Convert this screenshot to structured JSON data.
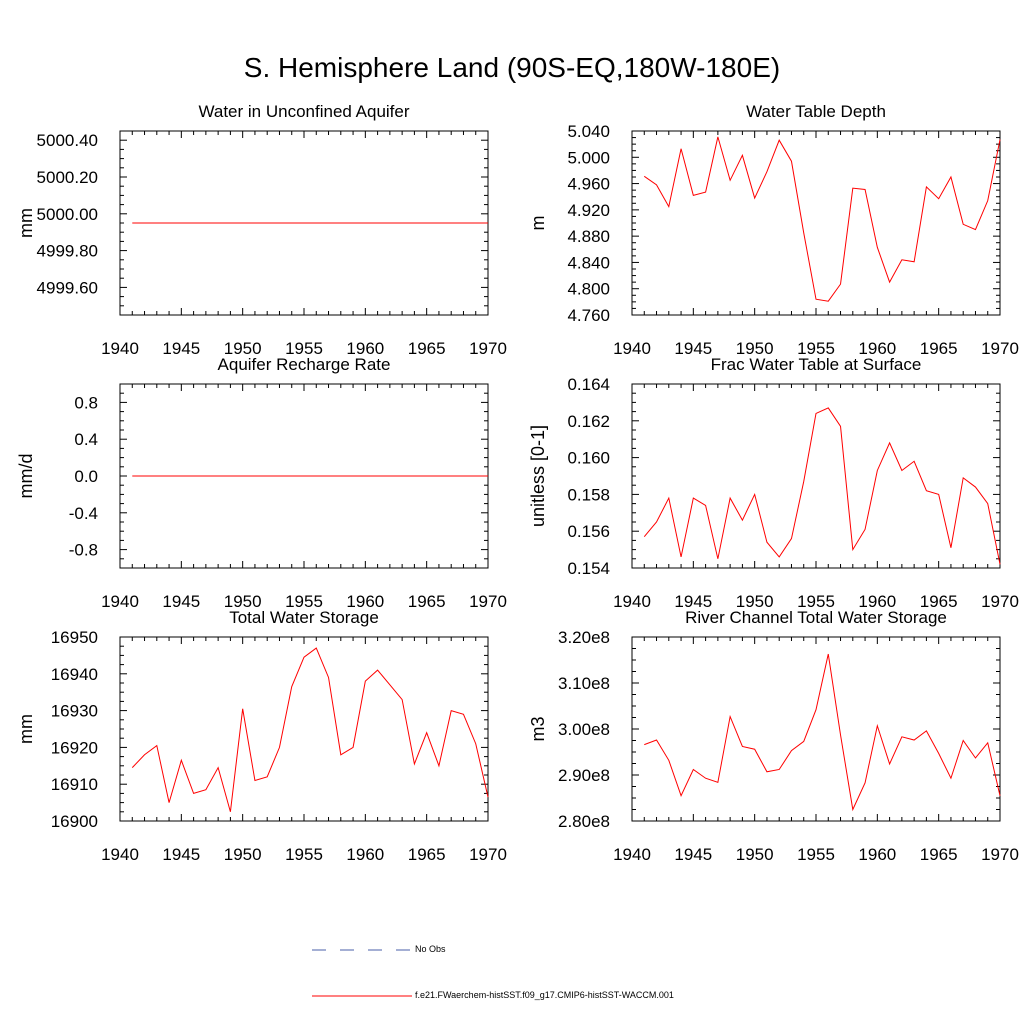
{
  "title": "S. Hemisphere Land (90S-EQ,180W-180E)",
  "legend": {
    "items": [
      {
        "label": "No Obs",
        "color": "#4a5fa8",
        "dash": "dashed"
      },
      {
        "label": "f.e21.FWaerchem-histSST.f09_g17.CMIP6-histSST-WACCM.001",
        "color": "#ff0000",
        "dash": "solid"
      }
    ]
  },
  "chart_data": [
    {
      "type": "line",
      "title": "Water in Unconfined Aquifer",
      "ylabel": "mm",
      "xlim": [
        1940,
        1970
      ],
      "ylim": [
        4999.45,
        5000.45
      ],
      "x_ticks": [
        "1940",
        "1945",
        "1950",
        "1955",
        "1960",
        "1965",
        "1970"
      ],
      "y_ticks": [
        "4999.60",
        "4999.80",
        "5000.00",
        "5000.20",
        "5000.40"
      ],
      "x": [
        1941,
        1942,
        1943,
        1944,
        1945,
        1946,
        1947,
        1948,
        1949,
        1950,
        1951,
        1952,
        1953,
        1954,
        1955,
        1956,
        1957,
        1958,
        1959,
        1960,
        1961,
        1962,
        1963,
        1964,
        1965,
        1966,
        1967,
        1968,
        1969,
        1970
      ],
      "series": [
        {
          "color": "#ff0000",
          "values": [
            4999.95,
            4999.95,
            4999.95,
            4999.95,
            4999.95,
            4999.95,
            4999.95,
            4999.95,
            4999.95,
            4999.95,
            4999.95,
            4999.95,
            4999.95,
            4999.95,
            4999.95,
            4999.95,
            4999.95,
            4999.95,
            4999.95,
            4999.95,
            4999.95,
            4999.95,
            4999.95,
            4999.95,
            4999.95,
            4999.95,
            4999.95,
            4999.95,
            4999.95,
            4999.95
          ]
        }
      ]
    },
    {
      "type": "line",
      "title": "Water Table Depth",
      "ylabel": "m",
      "xlim": [
        1940,
        1970
      ],
      "ylim": [
        4.76,
        5.04
      ],
      "x_ticks": [
        "1940",
        "1945",
        "1950",
        "1955",
        "1960",
        "1965",
        "1970"
      ],
      "y_ticks": [
        "4.760",
        "4.800",
        "4.840",
        "4.880",
        "4.920",
        "4.960",
        "5.000",
        "5.040"
      ],
      "x": [
        1941,
        1942,
        1943,
        1944,
        1945,
        1946,
        1947,
        1948,
        1949,
        1950,
        1951,
        1952,
        1953,
        1954,
        1955,
        1956,
        1957,
        1958,
        1959,
        1960,
        1961,
        1962,
        1963,
        1964,
        1965,
        1966,
        1967,
        1968,
        1969,
        1970
      ],
      "series": [
        {
          "color": "#ff0000",
          "values": [
            4.971,
            4.958,
            4.925,
            5.013,
            4.942,
            4.947,
            5.031,
            4.965,
            5.003,
            4.938,
            4.978,
            5.026,
            4.994,
            4.885,
            4.784,
            4.781,
            4.807,
            4.953,
            4.951,
            4.863,
            4.81,
            4.844,
            4.841,
            4.955,
            4.937,
            4.97,
            4.898,
            4.89,
            4.934,
            5.027
          ]
        }
      ]
    },
    {
      "type": "line",
      "title": "Aquifer Recharge Rate",
      "ylabel": "mm/d",
      "xlim": [
        1940,
        1970
      ],
      "ylim": [
        -1.0,
        1.0
      ],
      "x_ticks": [
        "1940",
        "1945",
        "1950",
        "1955",
        "1960",
        "1965",
        "1970"
      ],
      "y_ticks": [
        "-0.8",
        "-0.4",
        "0.0",
        "0.4",
        "0.8"
      ],
      "x": [
        1941,
        1942,
        1943,
        1944,
        1945,
        1946,
        1947,
        1948,
        1949,
        1950,
        1951,
        1952,
        1953,
        1954,
        1955,
        1956,
        1957,
        1958,
        1959,
        1960,
        1961,
        1962,
        1963,
        1964,
        1965,
        1966,
        1967,
        1968,
        1969,
        1970
      ],
      "series": [
        {
          "color": "#ff0000",
          "values": [
            0,
            0,
            0,
            0,
            0,
            0,
            0,
            0,
            0,
            0,
            0,
            0,
            0,
            0,
            0,
            0,
            0,
            0,
            0,
            0,
            0,
            0,
            0,
            0,
            0,
            0,
            0,
            0,
            0,
            0
          ]
        }
      ]
    },
    {
      "type": "line",
      "title": "Frac Water Table at Surface",
      "ylabel": "unitless [0-1]",
      "xlim": [
        1940,
        1970
      ],
      "ylim": [
        0.154,
        0.164
      ],
      "x_ticks": [
        "1940",
        "1945",
        "1950",
        "1955",
        "1960",
        "1965",
        "1970"
      ],
      "y_ticks": [
        "0.154",
        "0.156",
        "0.158",
        "0.160",
        "0.162",
        "0.164"
      ],
      "x": [
        1941,
        1942,
        1943,
        1944,
        1945,
        1946,
        1947,
        1948,
        1949,
        1950,
        1951,
        1952,
        1953,
        1954,
        1955,
        1956,
        1957,
        1958,
        1959,
        1960,
        1961,
        1962,
        1963,
        1964,
        1965,
        1966,
        1967,
        1968,
        1969,
        1970
      ],
      "series": [
        {
          "color": "#ff0000",
          "values": [
            0.1557,
            0.1565,
            0.1578,
            0.1546,
            0.1578,
            0.1574,
            0.1545,
            0.1578,
            0.1566,
            0.158,
            0.1554,
            0.1546,
            0.1556,
            0.1587,
            0.1624,
            0.1627,
            0.1617,
            0.155,
            0.1561,
            0.1593,
            0.1608,
            0.1593,
            0.1598,
            0.1582,
            0.158,
            0.1551,
            0.1589,
            0.1584,
            0.1575,
            0.1542
          ]
        }
      ]
    },
    {
      "type": "line",
      "title": "Total Water Storage",
      "ylabel": "mm",
      "xlim": [
        1940,
        1970
      ],
      "ylim": [
        16900,
        16950
      ],
      "x_ticks": [
        "1940",
        "1945",
        "1950",
        "1955",
        "1960",
        "1965",
        "1970"
      ],
      "y_ticks": [
        "16900",
        "16910",
        "16920",
        "16930",
        "16940",
        "16950"
      ],
      "x": [
        1941,
        1942,
        1943,
        1944,
        1945,
        1946,
        1947,
        1948,
        1949,
        1950,
        1951,
        1952,
        1953,
        1954,
        1955,
        1956,
        1957,
        1958,
        1959,
        1960,
        1961,
        1962,
        1963,
        1964,
        1965,
        1966,
        1967,
        1968,
        1969,
        1970
      ],
      "series": [
        {
          "color": "#ff0000",
          "values": [
            16914.5,
            16918,
            16920.5,
            16905,
            16916.5,
            16907.5,
            16908.5,
            16914.5,
            16902.5,
            16930.5,
            16911,
            16912,
            16920,
            16936.5,
            16944.5,
            16947,
            16939,
            16918,
            16920,
            16938,
            16941,
            16937,
            16933,
            16915.5,
            16924,
            16915,
            16930,
            16929,
            16921,
            16906.5
          ]
        }
      ]
    },
    {
      "type": "line",
      "title": "River Channel Total Water Storage",
      "ylabel": "m3",
      "xlim": [
        1940,
        1970
      ],
      "ylim": [
        280000000.0,
        320000000.0
      ],
      "x_ticks": [
        "1940",
        "1945",
        "1950",
        "1955",
        "1960",
        "1965",
        "1970"
      ],
      "y_ticks": [
        "2.80e8",
        "2.90e8",
        "3.00e8",
        "3.10e8",
        "3.20e8"
      ],
      "x": [
        1941,
        1942,
        1943,
        1944,
        1945,
        1946,
        1947,
        1948,
        1949,
        1950,
        1951,
        1952,
        1953,
        1954,
        1955,
        1956,
        1957,
        1958,
        1959,
        1960,
        1961,
        1962,
        1963,
        1964,
        1965,
        1966,
        1967,
        1968,
        1969,
        1970
      ],
      "series": [
        {
          "color": "#ff0000",
          "values": [
            296600000.0,
            297600000.0,
            293200000.0,
            285500000.0,
            291200000.0,
            289300000.0,
            288400000.0,
            302700000.0,
            296200000.0,
            295600000.0,
            290700000.0,
            291200000.0,
            295300000.0,
            297300000.0,
            304200000.0,
            316300000.0,
            298700000.0,
            282500000.0,
            288300000.0,
            300700000.0,
            292400000.0,
            298300000.0,
            297600000.0,
            299600000.0,
            294700000.0,
            289300000.0,
            297500000.0,
            293700000.0,
            297000000.0,
            285500000.0
          ]
        }
      ]
    }
  ]
}
